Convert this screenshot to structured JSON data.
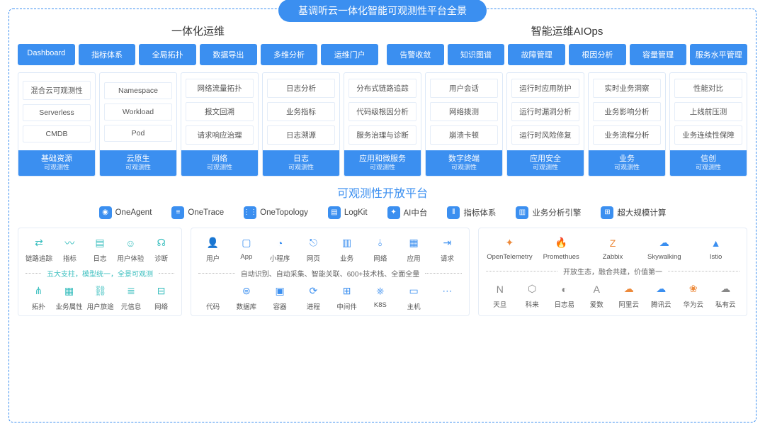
{
  "title": "基调听云一体化智能可观测性平台全景",
  "colors": {
    "primary": "#3b8ff0",
    "teal": "#3bbfbf",
    "orange": "#ed8a3b",
    "border": "#dce8f7",
    "text": "#333333",
    "subtext": "#555555",
    "bg": "#ffffff"
  },
  "top": {
    "left": {
      "title": "一体化运维",
      "tabs": [
        "Dashboard",
        "指标体系",
        "全局拓扑",
        "数据导出",
        "多维分析",
        "运维门户"
      ]
    },
    "right": {
      "title": "智能运维AIOps",
      "tabs": [
        "告警收敛",
        "知识图谱",
        "故障管理",
        "根因分析",
        "容量管理",
        "服务水平管理"
      ]
    }
  },
  "columns_foot_sub": "可观测性",
  "columns": [
    {
      "items": [
        "混合云可观测性",
        "Serverless",
        "CMDB"
      ],
      "title": "基础资源"
    },
    {
      "items": [
        "Namespace",
        "Workload",
        "Pod"
      ],
      "title": "云原生"
    },
    {
      "items": [
        "网络流量拓扑",
        "报文回溯",
        "请求响应治理"
      ],
      "title": "网络"
    },
    {
      "items": [
        "日志分析",
        "业务指标",
        "日志溯源"
      ],
      "title": "日志"
    },
    {
      "items": [
        "分布式链路追踪",
        "代码级根因分析",
        "服务治理与诊断"
      ],
      "title": "应用和微服务"
    },
    {
      "items": [
        "用户会话",
        "网络拨测",
        "崩溃卡顿"
      ],
      "title": "数字终端"
    },
    {
      "items": [
        "运行时应用防护",
        "运行时漏洞分析",
        "运行时风险修复"
      ],
      "title": "应用安全"
    },
    {
      "items": [
        "实时业务洞察",
        "业务影响分析",
        "业务流程分析"
      ],
      "title": "业务"
    },
    {
      "items": [
        "性能对比",
        "上线前压测",
        "业务连续性保障"
      ],
      "title": "信创"
    }
  ],
  "platform": {
    "title": "可观测性开放平台",
    "items": [
      "OneAgent",
      "OneTrace",
      "OneTopology",
      "LogKit",
      "AI中台",
      "指标体系",
      "业务分析引擎",
      "超大规模计算"
    ]
  },
  "bottom": {
    "box1": {
      "row1": [
        {
          "name": "link-tracking-icon",
          "label": "链路追踪"
        },
        {
          "name": "metrics-icon",
          "label": "指标"
        },
        {
          "name": "logs-icon",
          "label": "日志"
        },
        {
          "name": "user-experience-icon",
          "label": "用户体验"
        },
        {
          "name": "diagnosis-icon",
          "label": "诊断"
        }
      ],
      "divider": "五大支柱，模型统一，全景可观测",
      "row2": [
        {
          "name": "topology-icon",
          "label": "拓扑"
        },
        {
          "name": "business-attr-icon",
          "label": "业务属性"
        },
        {
          "name": "user-journey-icon",
          "label": "用户旅途"
        },
        {
          "name": "metadata-icon",
          "label": "元信息"
        },
        {
          "name": "network-icon",
          "label": "网络"
        }
      ]
    },
    "box2": {
      "row1": [
        {
          "name": "user-icon",
          "label": "用户"
        },
        {
          "name": "app-icon",
          "label": "App"
        },
        {
          "name": "miniprogram-icon",
          "label": "小程序"
        },
        {
          "name": "webpage-icon",
          "label": "网页"
        },
        {
          "name": "business-icon",
          "label": "业务"
        },
        {
          "name": "network2-icon",
          "label": "网络"
        },
        {
          "name": "application-icon",
          "label": "应用"
        },
        {
          "name": "request-icon",
          "label": "请求"
        }
      ],
      "divider": "自动识别、自动采集、智能关联、600+技术栈、全面全量",
      "row2": [
        {
          "name": "code-icon",
          "label": "代码"
        },
        {
          "name": "database-icon",
          "label": "数据库"
        },
        {
          "name": "container-icon",
          "label": "容器"
        },
        {
          "name": "process-icon",
          "label": "进程"
        },
        {
          "name": "middleware-icon",
          "label": "中间件"
        },
        {
          "name": "k8s-icon",
          "label": "K8S"
        },
        {
          "name": "host-icon",
          "label": "主机"
        },
        {
          "name": "more-icon",
          "label": ""
        }
      ]
    },
    "box3": {
      "row1": [
        {
          "name": "opentelemetry-icon",
          "label": "OpenTelemetry",
          "color": "orange"
        },
        {
          "name": "prometheus-icon",
          "label": "Promethues",
          "color": "orange"
        },
        {
          "name": "zabbix-icon",
          "label": "Zabbix",
          "color": "orange"
        },
        {
          "name": "skywalking-icon",
          "label": "Skywalking",
          "color": "blue"
        },
        {
          "name": "istio-icon",
          "label": "Istio",
          "color": "blue"
        }
      ],
      "divider": "开放生态，融合共建，价值第一",
      "row2": [
        {
          "name": "tiandan-icon",
          "label": "天旦",
          "color": "gray"
        },
        {
          "name": "kelai-icon",
          "label": "科来",
          "color": "gray"
        },
        {
          "name": "rizhiyi-icon",
          "label": "日志易",
          "color": "gray"
        },
        {
          "name": "aishu-icon",
          "label": "爱数",
          "color": "gray"
        },
        {
          "name": "aliyun-icon",
          "label": "阿里云",
          "color": "orange"
        },
        {
          "name": "tencent-icon",
          "label": "腾讯云",
          "color": "blue"
        },
        {
          "name": "huawei-icon",
          "label": "华为云",
          "color": "orange"
        },
        {
          "name": "private-icon",
          "label": "私有云",
          "color": "gray"
        }
      ]
    }
  }
}
